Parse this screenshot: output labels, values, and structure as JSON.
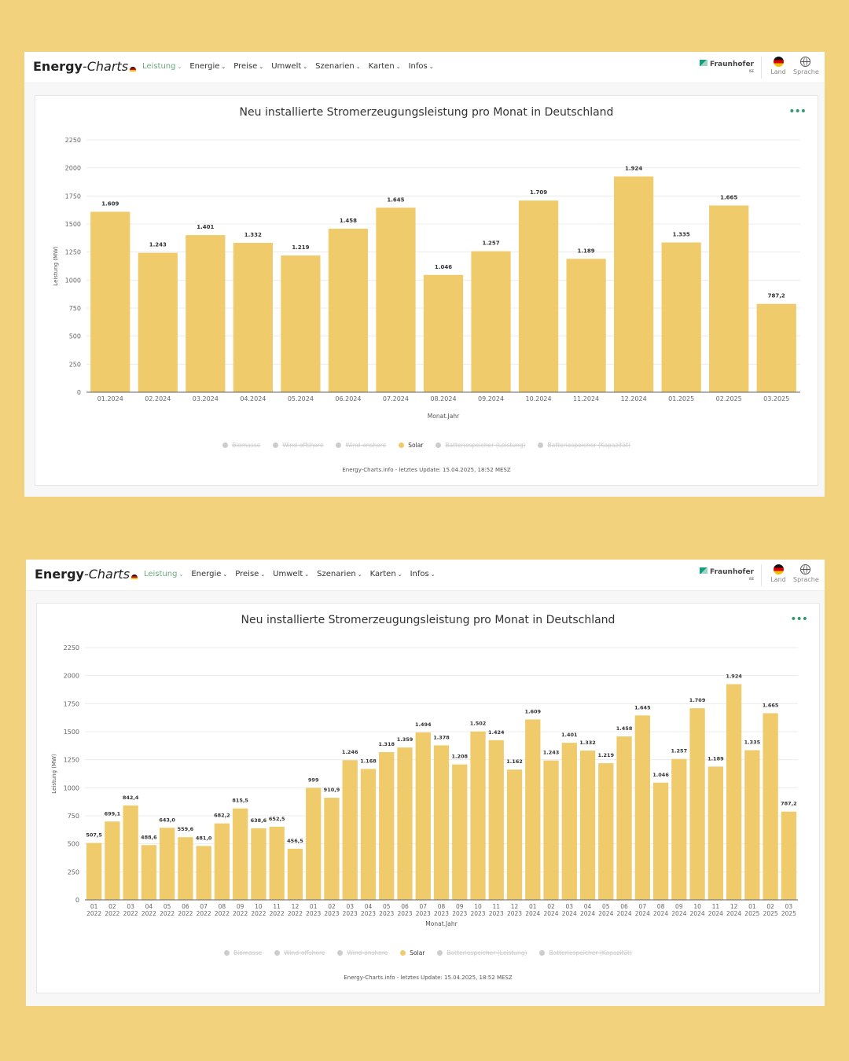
{
  "nav": {
    "logo_bold": "Energy",
    "logo_italic": "-Charts",
    "menu": [
      "Leistung",
      "Energie",
      "Preise",
      "Umwelt",
      "Szenarien",
      "Karten",
      "Infos"
    ],
    "partner": "Fraunhofer",
    "partner_sub": "ISE",
    "land": "Land",
    "sprache": "Sprache"
  },
  "colors": {
    "bar": "#f0cb6c",
    "background": "#f2d27c",
    "accent": "#6aaa7c"
  },
  "legend": [
    {
      "label": "Biomasse",
      "active": false
    },
    {
      "label": "Wind-offshore",
      "active": false
    },
    {
      "label": "Wind-onshore",
      "active": false
    },
    {
      "label": "Solar",
      "active": true
    },
    {
      "label": "Batteriespeicher (Leistung)",
      "active": false
    },
    {
      "label": "Batteriespeicher (Kapazität)",
      "active": false
    }
  ],
  "footer": "Energy-Charts.info - letztes Update: 15.04.2025, 18:52 MESZ",
  "more_icon": "•••",
  "chart_data": [
    {
      "type": "bar",
      "title": "Neu installierte Stromerzeugungsleistung pro Monat in Deutschland",
      "xlabel": "Monat.Jahr",
      "ylabel": "Leistung (MW)",
      "ylim": [
        0,
        2250
      ],
      "yticks": [
        0,
        250,
        500,
        750,
        1000,
        1250,
        1500,
        1750,
        2000,
        2250
      ],
      "grid": true,
      "legend_position": "bottom",
      "series_name": "Solar",
      "categories": [
        "01.2024",
        "02.2024",
        "03.2024",
        "04.2024",
        "05.2024",
        "06.2024",
        "07.2024",
        "08.2024",
        "09.2024",
        "10.2024",
        "11.2024",
        "12.2024",
        "01.2025",
        "02.2025",
        "03.2025"
      ],
      "values": [
        1609,
        1243,
        1401,
        1332,
        1219,
        1458,
        1645,
        1046,
        1257,
        1709,
        1189,
        1924,
        1335,
        1665,
        787.2
      ],
      "labels": [
        "1.609",
        "1.243",
        "1.401",
        "1.332",
        "1.219",
        "1.458",
        "1.645",
        "1.046",
        "1.257",
        "1.709",
        "1.189",
        "1.924",
        "1.335",
        "1.665",
        "787,2"
      ]
    },
    {
      "type": "bar",
      "title": "Neu installierte Stromerzeugungsleistung pro Monat in Deutschland",
      "xlabel": "Monat.Jahr",
      "ylabel": "Leistung (MW)",
      "ylim": [
        0,
        2250
      ],
      "yticks": [
        0,
        250,
        500,
        750,
        1000,
        1250,
        1500,
        1750,
        2000,
        2250
      ],
      "grid": true,
      "legend_position": "bottom",
      "series_name": "Solar",
      "categories": [
        "01 2022",
        "02 2022",
        "03 2022",
        "04 2022",
        "05 2022",
        "06 2022",
        "07 2022",
        "08 2022",
        "09 2022",
        "10 2022",
        "11 2022",
        "12 2022",
        "01 2023",
        "02 2023",
        "03 2023",
        "04 2023",
        "05 2023",
        "06 2023",
        "07 2023",
        "08 2023",
        "09 2023",
        "10 2023",
        "11 2023",
        "12 2023",
        "01 2024",
        "02 2024",
        "03 2024",
        "04 2024",
        "05 2024",
        "06 2024",
        "07 2024",
        "08 2024",
        "09 2024",
        "10 2024",
        "11 2024",
        "12 2024",
        "01 2025",
        "02 2025",
        "03 2025"
      ],
      "values": [
        507.5,
        699.1,
        842.4,
        488.6,
        643.0,
        559.6,
        481.0,
        682.2,
        815.5,
        638.6,
        652.5,
        456.5,
        999,
        910.9,
        1246,
        1168,
        1318,
        1359,
        1494,
        1378,
        1208,
        1502,
        1424,
        1162,
        1609,
        1243,
        1401,
        1332,
        1219,
        1458,
        1645,
        1046,
        1257,
        1709,
        1189,
        1924,
        1335,
        1665,
        787.2
      ],
      "labels": [
        "507,5",
        "699,1",
        "842,4",
        "488,6",
        "643,0",
        "559,6",
        "481,0",
        "682,2",
        "815,5",
        "638,6",
        "652,5",
        "456,5",
        "999",
        "910,9",
        "1.246",
        "1.168",
        "1.318",
        "1.359",
        "1.494",
        "1.378",
        "1.208",
        "1.502",
        "1.424",
        "1.162",
        "1.609",
        "1.243",
        "1.401",
        "1.332",
        "1.219",
        "1.458",
        "1.645",
        "1.046",
        "1.257",
        "1.709",
        "1.189",
        "1.924",
        "1.335",
        "1.665",
        "787,2"
      ]
    }
  ]
}
